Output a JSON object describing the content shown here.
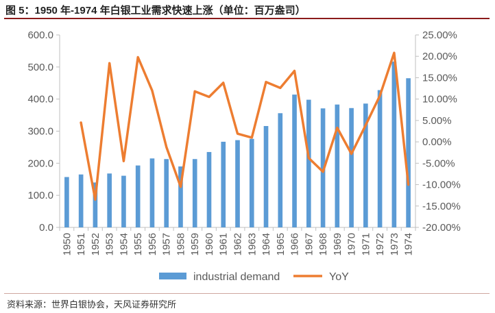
{
  "title": "图 5：1950 年-1974 年白银工业需求快速上涨（单位：百万盎司）",
  "source": "资料来源：世界白银协会，天风证券研究所",
  "chart_data": {
    "type": "bar",
    "categories": [
      "1950",
      "1951",
      "1952",
      "1953",
      "1954",
      "1955",
      "1956",
      "1957",
      "1958",
      "1959",
      "1960",
      "1961",
      "1962",
      "1963",
      "1964",
      "1965",
      "1966",
      "1967",
      "1968",
      "1969",
      "1970",
      "1971",
      "1972",
      "1973",
      "1974"
    ],
    "series": [
      {
        "name": "industrial demand",
        "type": "bar",
        "axis": "left",
        "color": "#5b9bd5",
        "values": [
          157,
          165,
          140,
          168,
          161,
          193,
          215,
          213,
          190,
          213,
          235,
          267,
          272,
          276,
          316,
          356,
          414,
          398,
          371,
          383,
          372,
          386,
          428,
          517,
          465
        ]
      },
      {
        "name": "YoY",
        "type": "line",
        "axis": "right",
        "color": "#ed7d31",
        "values": [
          null,
          4.5,
          -13.5,
          18.4,
          -4.5,
          19.8,
          12.0,
          -1.2,
          -10.5,
          11.8,
          10.5,
          13.8,
          1.9,
          1.0,
          14.0,
          12.6,
          16.6,
          -3.8,
          -7.0,
          3.3,
          -2.8,
          3.9,
          10.8,
          20.8,
          -10.0
        ]
      }
    ],
    "yleft": {
      "ylim": [
        0,
        600
      ],
      "ticks": [
        "0.0",
        "100.0",
        "200.0",
        "300.0",
        "400.0",
        "500.0",
        "600.0"
      ]
    },
    "yright": {
      "ylim": [
        -20,
        25
      ],
      "ticks": [
        "-20.00%",
        "-15.00%",
        "-10.00%",
        "-5.00%",
        "0.00%",
        "5.00%",
        "10.00%",
        "15.00%",
        "20.00%",
        "25.00%"
      ]
    },
    "legend": [
      "industrial demand",
      "YoY"
    ],
    "legend_position": "bottom"
  }
}
